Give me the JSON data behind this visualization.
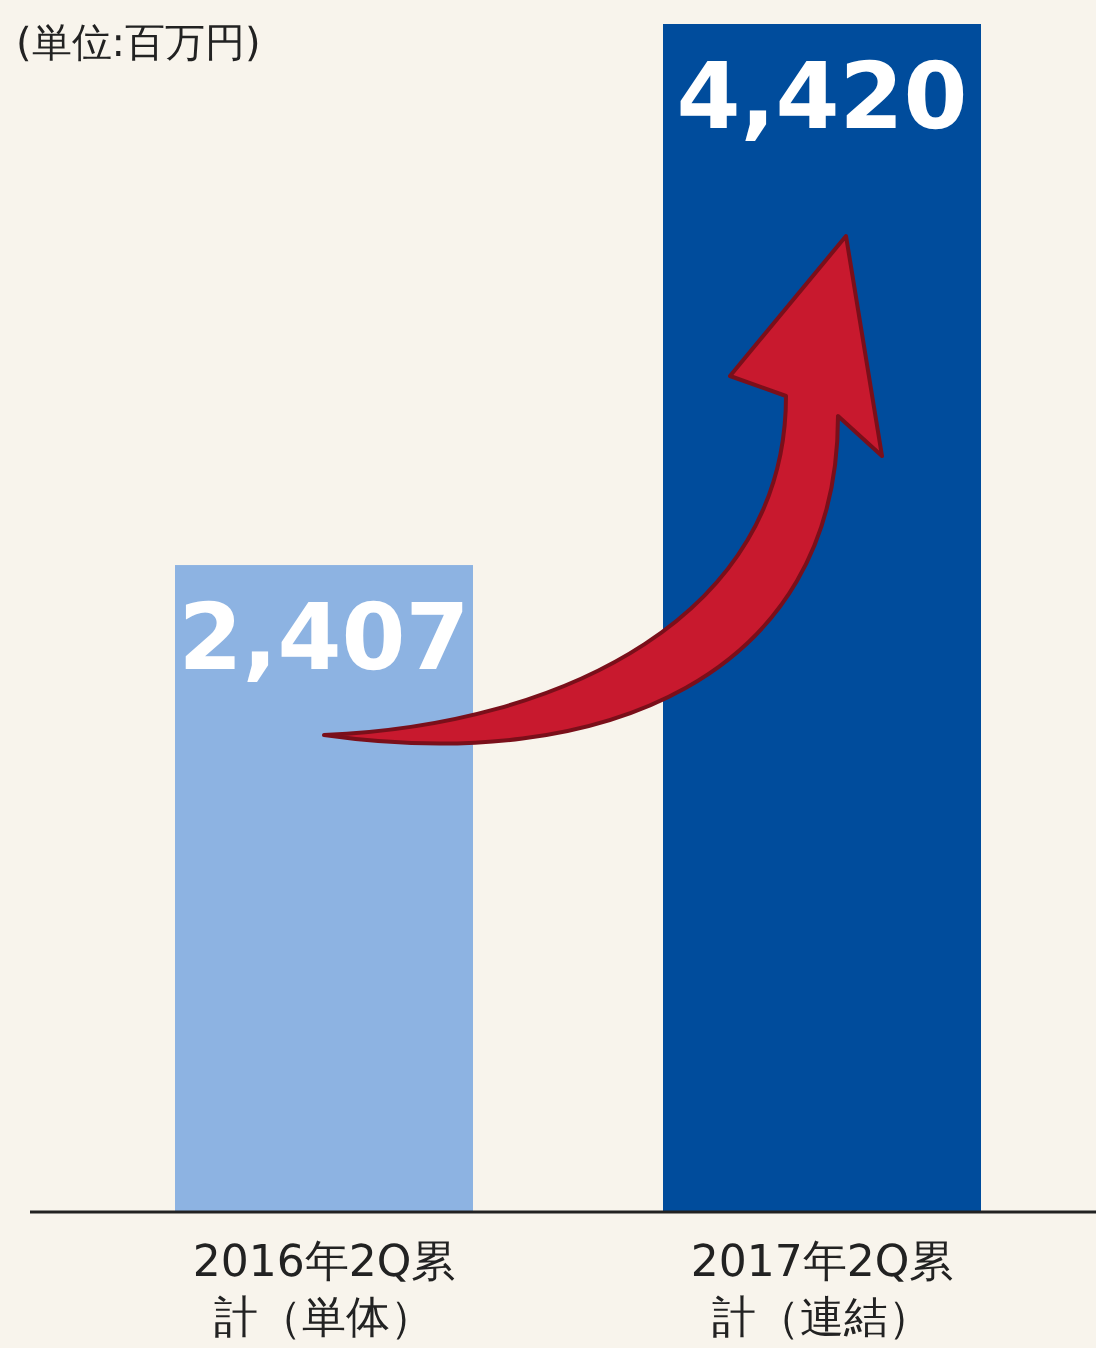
{
  "chart_data": {
    "type": "bar",
    "annotations": [
      "(単位:百万円)"
    ],
    "categories": [
      "2016年2Q累計（単体）",
      "2017年2Q累計（連結）"
    ],
    "values": [
      2407,
      4420
    ],
    "value_labels": [
      "2,407",
      "4,420"
    ],
    "colors": [
      "#8db3e2",
      "#004c9c"
    ]
  }
}
